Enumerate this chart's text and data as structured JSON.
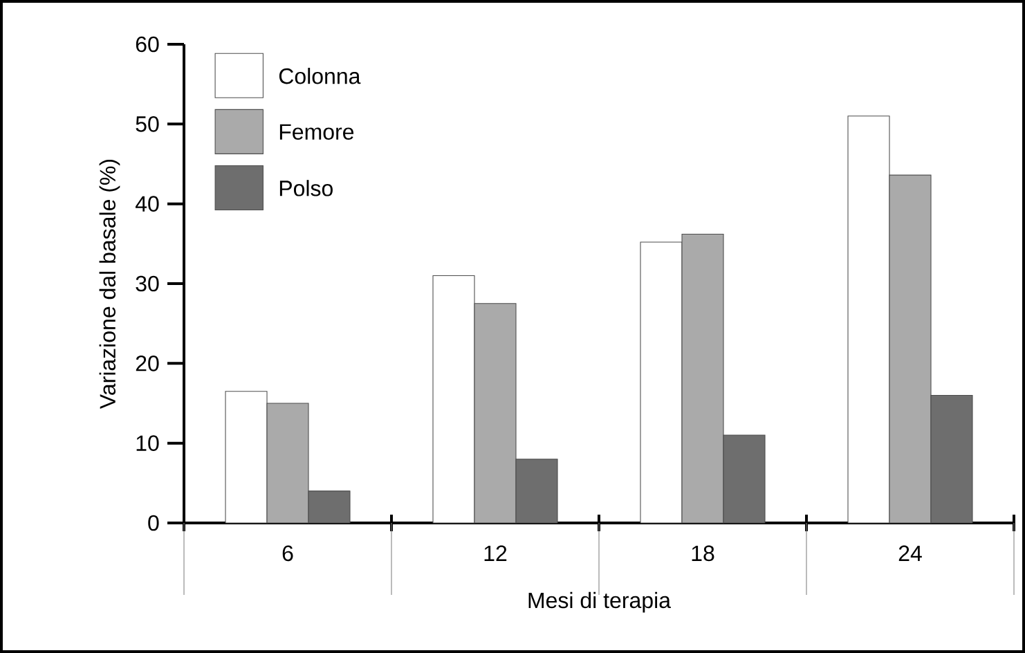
{
  "chart_data": {
    "type": "bar",
    "xlabel": "Mesi di terapia",
    "ylabel": "Variazione dal basale (%)",
    "categories": [
      "6",
      "12",
      "18",
      "24"
    ],
    "series": [
      {
        "name": "Colonna",
        "color": "#ffffff",
        "values": [
          16.5,
          31,
          35.2,
          51
        ]
      },
      {
        "name": "Femore",
        "color": "#aaaaaa",
        "values": [
          15,
          27.5,
          36.2,
          43.6
        ]
      },
      {
        "name": "Polso",
        "color": "#6e6e6e",
        "values": [
          4,
          8,
          11,
          16
        ]
      }
    ],
    "ylim": [
      0,
      60
    ],
    "yticks": [
      0,
      10,
      20,
      30,
      40,
      50,
      60
    ],
    "grid": false,
    "legend": "top left"
  }
}
